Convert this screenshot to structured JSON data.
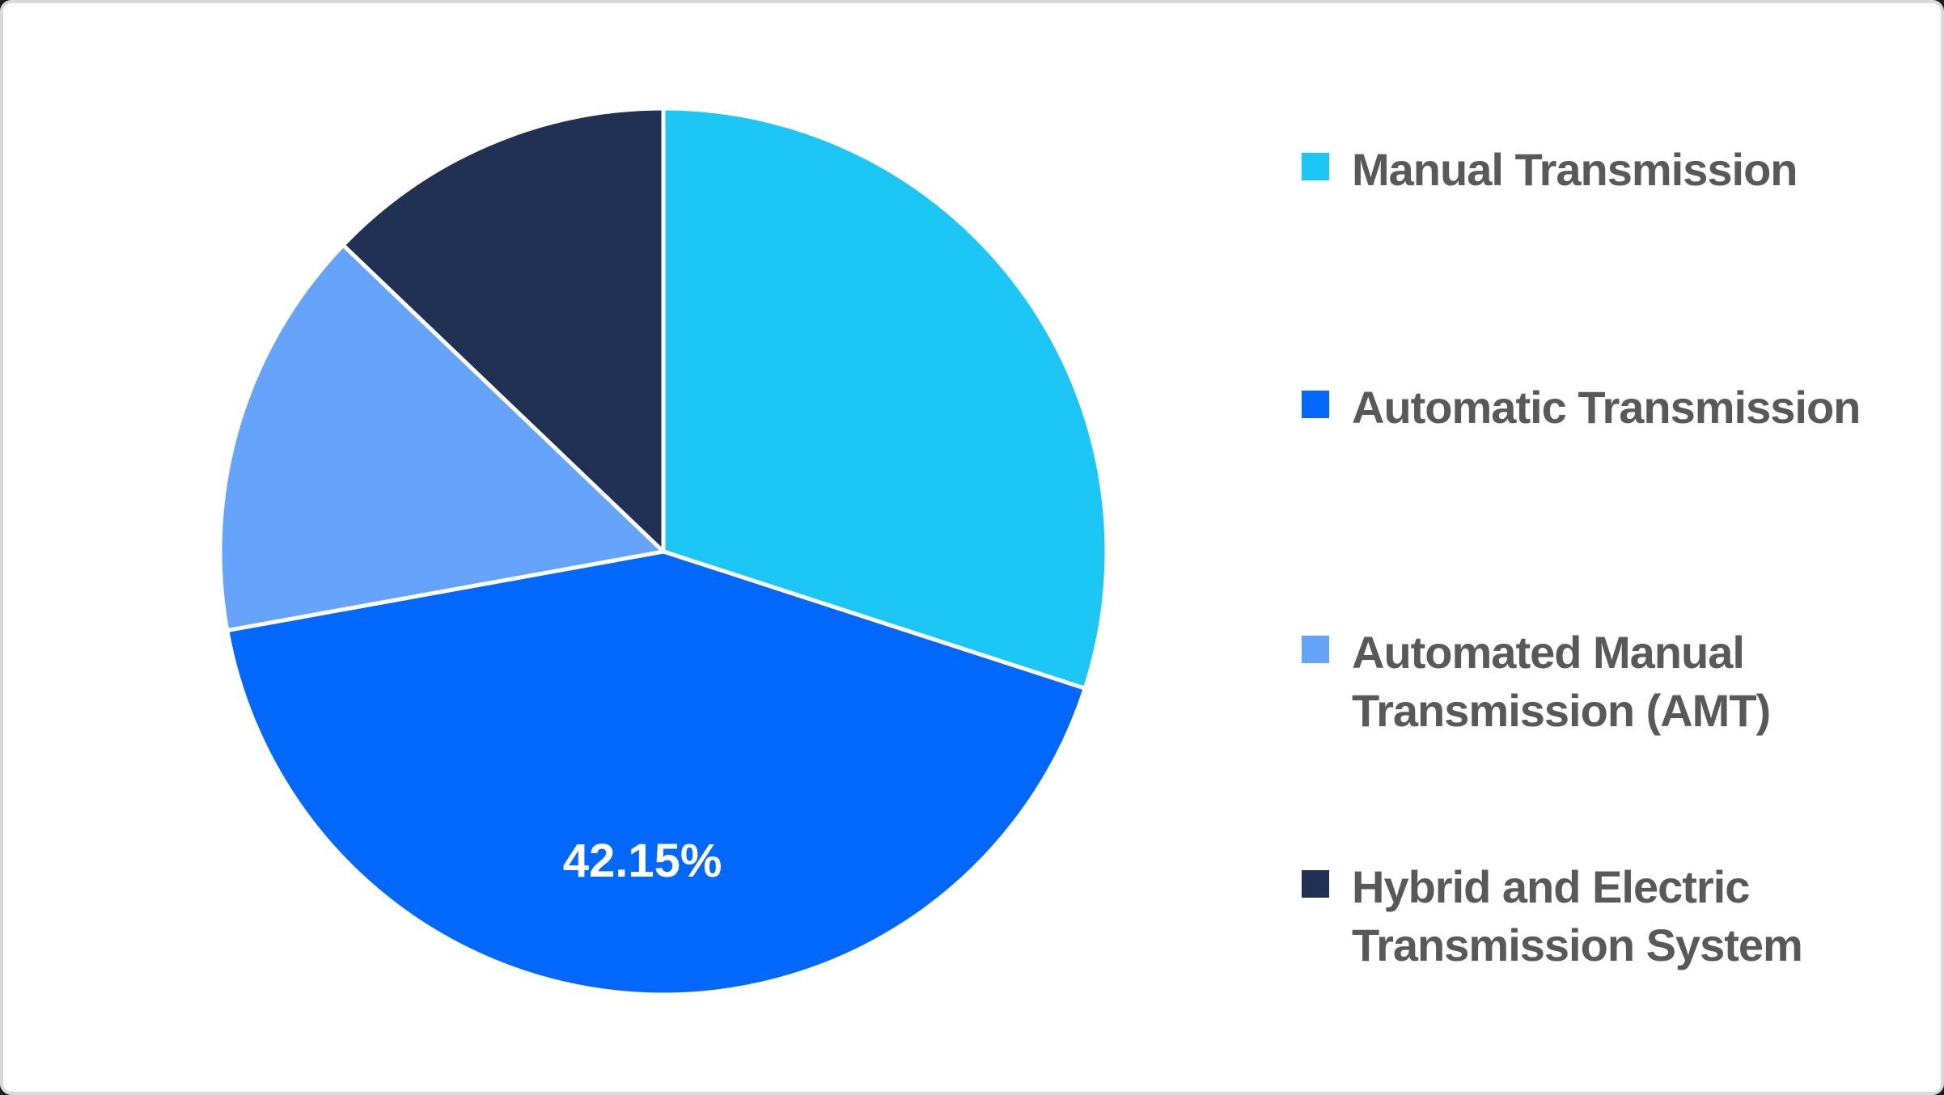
{
  "window": {
    "background": "#FFFFFF",
    "frame_border_color": "#D9D9D9"
  },
  "chart_data": {
    "type": "pie",
    "title": "",
    "direction": "clockwise",
    "start_angle_deg": 0,
    "legend_position": "right",
    "grid": "off",
    "total": 100,
    "series": [
      {
        "name": "Manual Transmission",
        "value": 30.0,
        "estimated": true,
        "color": "#1DC7F5",
        "data_label": ""
      },
      {
        "name": "Automatic Transmission",
        "value": 42.15,
        "estimated": false,
        "color": "#0267FB",
        "data_label": "42.15%"
      },
      {
        "name": "Automated Manual Transmission (AMT)",
        "value": 15.0,
        "estimated": true,
        "color": "#66A3FB",
        "data_label": ""
      },
      {
        "name": "Hybrid and Electric Transmission System",
        "value": 12.85,
        "estimated": true,
        "color": "#203154",
        "data_label": ""
      }
    ],
    "data_label_color": "#FFFFFF",
    "legend_text_color": "#595959"
  }
}
